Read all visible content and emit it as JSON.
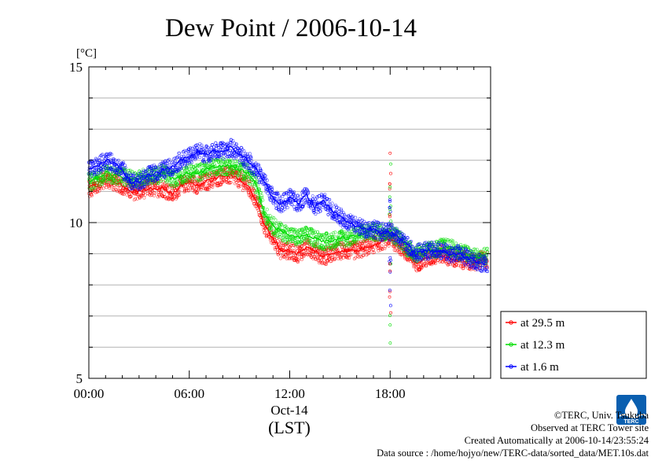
{
  "chart_data": {
    "type": "line",
    "title": "Dew Point / 2006-10-14",
    "ylabel": "[°C]",
    "xlabel": "(LST)",
    "date_label": "Oct-14",
    "xlim_hours": [
      0,
      24
    ],
    "ylim": [
      5,
      15
    ],
    "y_ticks": [
      5,
      10,
      15
    ],
    "y_minor_step": 1,
    "x_ticks": [
      {
        "hour": 0,
        "label": "00:00"
      },
      {
        "hour": 6,
        "label": "06:00"
      },
      {
        "hour": 12,
        "label": "12:00"
      },
      {
        "hour": 18,
        "label": "18:00"
      }
    ],
    "grid": true,
    "legend_placement": "bottom-right, outside plot",
    "marker": "open circles with moving-average line",
    "x_hours": [
      0,
      0.5,
      1,
      1.5,
      2,
      2.5,
      3,
      3.5,
      4,
      4.5,
      5,
      5.5,
      6,
      6.5,
      7,
      7.5,
      8,
      8.5,
      9,
      9.5,
      10,
      10.5,
      11,
      11.5,
      12,
      12.5,
      13,
      13.5,
      14,
      14.5,
      15,
      15.5,
      16,
      16.5,
      17,
      17.5,
      18,
      18.5,
      19,
      19.5,
      20,
      20.5,
      21,
      21.5,
      22,
      22.5,
      23,
      23.5
    ],
    "series": [
      {
        "name": "at 29.5 m",
        "color": "#ff0000",
        "values": [
          11.1,
          11.2,
          11.4,
          11.3,
          11.2,
          11.0,
          11.0,
          11.1,
          11.1,
          11.1,
          10.9,
          11.2,
          11.3,
          11.2,
          11.3,
          11.4,
          11.5,
          11.5,
          11.4,
          11.2,
          10.7,
          9.9,
          9.5,
          9.1,
          9.1,
          9.0,
          9.2,
          9.1,
          8.9,
          9.0,
          9.1,
          9.1,
          9.1,
          9.2,
          9.3,
          9.4,
          9.5,
          9.3,
          9.0,
          8.7,
          8.8,
          8.9,
          9.0,
          8.9,
          8.8,
          8.8,
          8.7,
          8.8
        ]
      },
      {
        "name": "at 12.3 m",
        "color": "#00dd00",
        "values": [
          11.3,
          11.4,
          11.6,
          11.5,
          11.5,
          11.4,
          11.4,
          11.5,
          11.5,
          11.6,
          11.4,
          11.5,
          11.6,
          11.6,
          11.7,
          11.8,
          11.8,
          11.8,
          11.7,
          11.6,
          11.2,
          10.3,
          9.9,
          9.7,
          9.6,
          9.5,
          9.6,
          9.5,
          9.4,
          9.4,
          9.5,
          9.5,
          9.6,
          9.7,
          9.7,
          9.7,
          9.7,
          9.5,
          9.2,
          9.0,
          9.1,
          9.1,
          9.2,
          9.2,
          9.1,
          9.0,
          8.9,
          8.9
        ]
      },
      {
        "name": "at 1.6 m",
        "color": "#0000ff",
        "values": [
          11.7,
          11.8,
          12.0,
          11.9,
          11.7,
          11.3,
          11.3,
          11.5,
          11.6,
          11.7,
          11.8,
          12.0,
          12.1,
          12.3,
          12.2,
          12.3,
          12.3,
          12.4,
          12.2,
          12.0,
          11.7,
          11.3,
          10.8,
          10.6,
          10.8,
          10.6,
          10.9,
          10.5,
          10.7,
          10.4,
          10.2,
          10.0,
          9.9,
          9.8,
          9.8,
          9.7,
          9.7,
          9.5,
          9.3,
          9.0,
          9.1,
          9.1,
          9.1,
          9.0,
          9.0,
          8.9,
          8.8,
          8.7
        ]
      }
    ],
    "spike_hour": 18,
    "spike_range": [
      6.0,
      12.4
    ]
  },
  "footer": {
    "copyright": "©TERC, Univ. Tsukuba",
    "site": "Observed at TERC Tower site",
    "created": "Created Automatically at 2006-10-14/23:55:24",
    "source": "Data source : /home/hojyo/new/TERC-data/sorted_data/MET.10s.dat",
    "logo_text": "TERC"
  }
}
